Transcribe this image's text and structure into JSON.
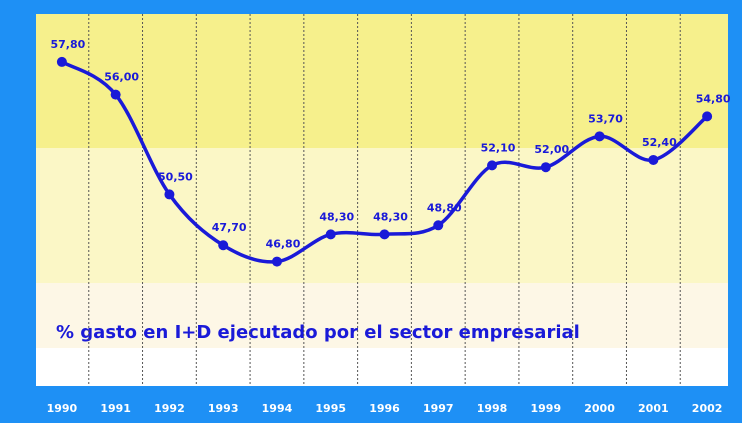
{
  "chart_data": {
    "type": "line",
    "annotation": "% gasto en I+D ejecutado por el sector empresarial",
    "categories": [
      "1990",
      "1991",
      "1992",
      "1993",
      "1994",
      "1995",
      "1996",
      "1997",
      "1998",
      "1999",
      "2000",
      "2001",
      "2002"
    ],
    "values": [
      57.8,
      56.0,
      50.5,
      47.7,
      46.8,
      48.3,
      48.3,
      48.8,
      52.1,
      52.0,
      53.7,
      52.4,
      54.8
    ],
    "value_labels": [
      "57,80",
      "56,00",
      "50,50",
      "47,70",
      "46,80",
      "48,30",
      "48,30",
      "48,80",
      "52,10",
      "52,00",
      "53,70",
      "52,40",
      "54,80"
    ],
    "color": "#1a1ad8",
    "ylim": [
      40,
      60
    ],
    "grid": true
  }
}
